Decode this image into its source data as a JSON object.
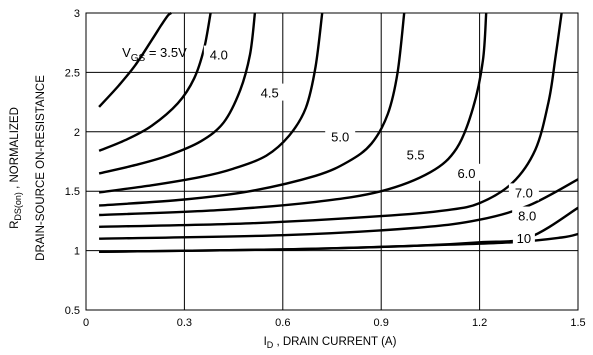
{
  "chart_data": {
    "type": "line",
    "title": "",
    "xlabel": {
      "main": "I",
      "sub": "D",
      "rest": " , DRAIN CURRENT (A)"
    },
    "ylabel": {
      "line1_main": "R",
      "line1_sub": "DS(on)",
      "line1_rest": " , NORMALIZED",
      "line2": "DRAIN-SOURCE  ON-RESISTANCE"
    },
    "xlim": [
      0,
      1.5
    ],
    "ylim": [
      0.5,
      3
    ],
    "xticks": [
      "0",
      "0.3",
      "0.6",
      "0.9",
      "1.2",
      "1.5"
    ],
    "yticks": [
      "0.5",
      "1",
      "1.5",
      "2",
      "2.5",
      "3"
    ],
    "grid": true,
    "legend": "none",
    "curve_prefix": {
      "main": "V",
      "sub": "GS",
      "rest": " = "
    },
    "series": [
      {
        "name": "3.5V",
        "x": [
          0.04,
          0.1,
          0.15,
          0.2,
          0.23,
          0.25,
          0.26
        ],
        "y": [
          2.21,
          2.39,
          2.56,
          2.77,
          2.9,
          2.98,
          3.0
        ]
      },
      {
        "name": "4.0",
        "x": [
          0.04,
          0.12,
          0.2,
          0.28,
          0.33,
          0.36,
          0.38
        ],
        "y": [
          1.84,
          1.93,
          2.05,
          2.24,
          2.45,
          2.7,
          3.0
        ]
      },
      {
        "name": "4.5",
        "x": [
          0.04,
          0.15,
          0.25,
          0.35,
          0.42,
          0.47,
          0.5,
          0.515
        ],
        "y": [
          1.65,
          1.72,
          1.8,
          1.92,
          2.08,
          2.35,
          2.65,
          3.0
        ]
      },
      {
        "name": "5.0",
        "x": [
          0.04,
          0.2,
          0.35,
          0.45,
          0.55,
          0.62,
          0.67,
          0.7,
          0.72
        ],
        "y": [
          1.49,
          1.55,
          1.62,
          1.69,
          1.8,
          1.97,
          2.2,
          2.55,
          3.0
        ]
      },
      {
        "name": "5.5",
        "x": [
          0.04,
          0.3,
          0.5,
          0.7,
          0.8,
          0.87,
          0.92,
          0.95,
          0.97
        ],
        "y": [
          1.38,
          1.43,
          1.5,
          1.63,
          1.75,
          1.9,
          2.15,
          2.5,
          3.0
        ]
      },
      {
        "name": "6.0",
        "x": [
          0.04,
          0.4,
          0.7,
          0.9,
          1.05,
          1.13,
          1.18,
          1.21,
          1.22
        ],
        "y": [
          1.3,
          1.34,
          1.41,
          1.5,
          1.66,
          1.86,
          2.2,
          2.6,
          3.0
        ]
      },
      {
        "name": "7.0",
        "x": [
          0.04,
          0.5,
          0.9,
          1.1,
          1.2,
          1.3,
          1.37,
          1.41,
          1.43,
          1.45
        ],
        "y": [
          1.2,
          1.23,
          1.29,
          1.34,
          1.4,
          1.57,
          1.85,
          2.25,
          2.6,
          3.0
        ]
      },
      {
        "name": "8.0",
        "x": [
          0.04,
          0.6,
          1.0,
          1.2,
          1.35,
          1.5
        ],
        "y": [
          1.1,
          1.13,
          1.19,
          1.26,
          1.38,
          1.6
        ]
      },
      {
        "name": "10",
        "x": [
          0.04,
          0.6,
          1.0,
          1.2,
          1.35,
          1.5
        ],
        "y": [
          0.99,
          1.01,
          1.04,
          1.07,
          1.11,
          1.36
        ]
      },
      {
        "name": "",
        "x": [
          0.04,
          0.6,
          1.0,
          1.3,
          1.45,
          1.5
        ],
        "y": [
          0.99,
          1.01,
          1.04,
          1.07,
          1.11,
          1.14
        ]
      }
    ]
  }
}
